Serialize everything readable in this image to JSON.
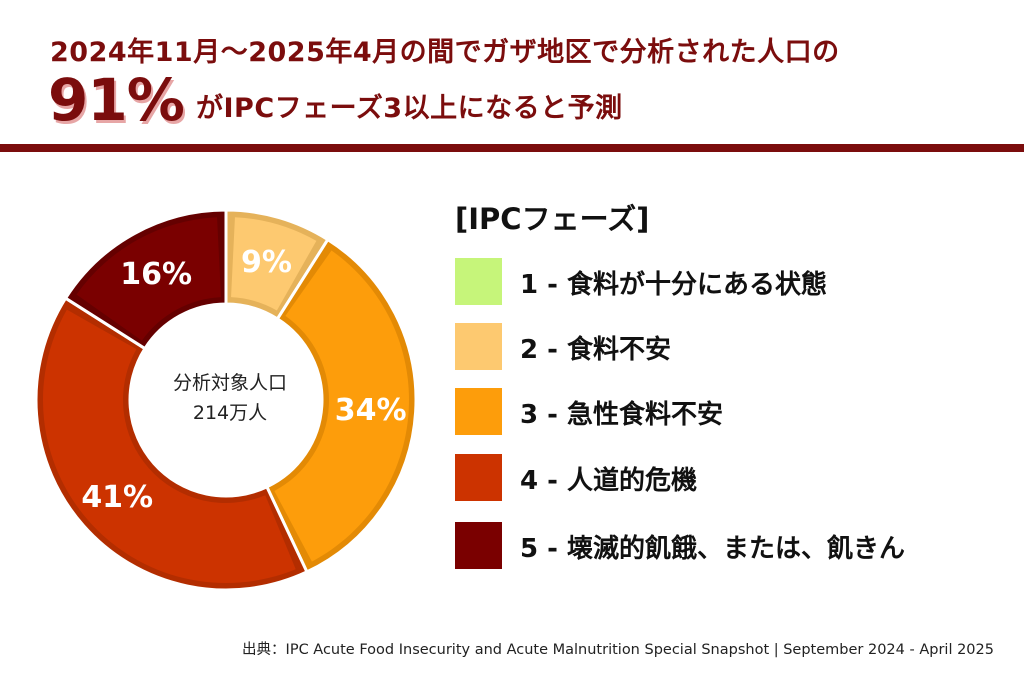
{
  "header": {
    "title_line1": "2024年11月〜2025年4月の間でガザ地区で分析された人口の",
    "big_percent": "91%",
    "title_line2": "がIPCフェーズ3以上になると予測"
  },
  "center": {
    "line1": "分析対象人口",
    "line2": "214万人"
  },
  "legend": {
    "title": "[IPCフェーズ]",
    "items": [
      {
        "label": "1 - 食料が十分にある状態",
        "color": "#c6f57a"
      },
      {
        "label": "2 - 食料不安",
        "color": "#fdc970"
      },
      {
        "label": "3 - 急性食料不安",
        "color": "#fd9d0b"
      },
      {
        "label": "4 - 人道的危機",
        "color": "#cc3300"
      },
      {
        "label": "5 - 壊滅的飢餓、または、飢きん",
        "color": "#7a0000"
      }
    ]
  },
  "source": "出典：IPC Acute Food Insecurity and Acute Malnutrition Special Snapshot | September 2024 - April 2025",
  "chart_data": {
    "type": "pie",
    "categories": [
      "2 - 食料不安",
      "3 - 急性食料不安",
      "4 - 人道的危機",
      "5 - 壊滅的飢餓、または、飢きん"
    ],
    "values": [
      9,
      34,
      41,
      16
    ],
    "labels": [
      "9%",
      "34%",
      "41%",
      "16%"
    ],
    "colors": [
      "#fdc970",
      "#fd9d0b",
      "#cc3300",
      "#7a0000"
    ],
    "edge_colors": [
      "#e5b25a",
      "#e38a05",
      "#b32d00",
      "#650000"
    ],
    "label_colors": [
      "#ffffff",
      "#ffffff",
      "#ffffff",
      "#ffffff"
    ]
  }
}
